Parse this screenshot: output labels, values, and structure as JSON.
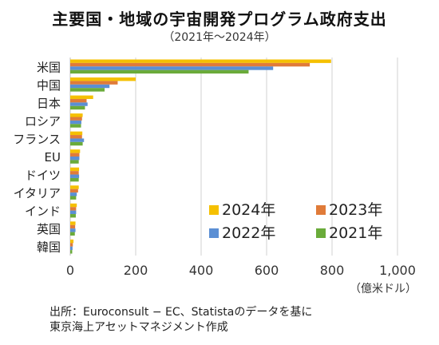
{
  "chart_data": {
    "type": "bar",
    "orientation": "horizontal",
    "title": "主要国・地域の宇宙開発プログラム政府支出",
    "subtitle": "（2021年～2024年）",
    "categories": [
      "米国",
      "中国",
      "日本",
      "ロシア",
      "フランス",
      "EU",
      "ドイツ",
      "イタリア",
      "インド",
      "英国",
      "韓国"
    ],
    "series": [
      {
        "name": "2024年",
        "color": "#f5c000",
        "values": [
          797,
          200,
          70,
          38,
          37,
          30,
          27,
          26,
          20,
          16,
          10
        ]
      },
      {
        "name": "2023年",
        "color": "#e07b39",
        "values": [
          732,
          145,
          50,
          36,
          36,
          28,
          26,
          24,
          18,
          15,
          8
        ]
      },
      {
        "name": "2022年",
        "color": "#5b8fd4",
        "values": [
          620,
          120,
          53,
          34,
          42,
          28,
          27,
          20,
          18,
          16,
          7
        ]
      },
      {
        "name": "2021年",
        "color": "#6aab3a",
        "values": [
          545,
          105,
          45,
          33,
          38,
          26,
          26,
          18,
          17,
          14,
          6
        ]
      }
    ],
    "xlim": [
      0,
      1000
    ],
    "xticks": [
      "0",
      "200",
      "400",
      "600",
      "800",
      "1,000"
    ],
    "unit": "（億米ドル）",
    "grid": true,
    "legend": "bottom-right"
  },
  "source": {
    "line1": "出所：Euroconsult − EC、Statistaのデータを基に",
    "line2": "東京海上アセットマネジメント作成"
  }
}
